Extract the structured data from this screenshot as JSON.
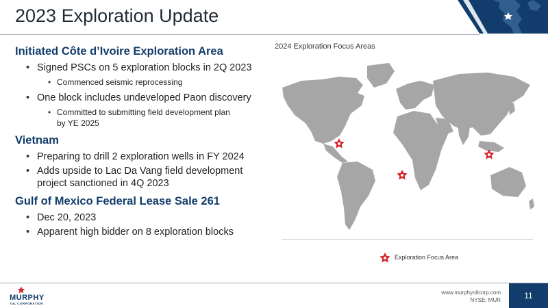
{
  "title": "2023 Exploration Update",
  "sections": [
    {
      "heading": "Initiated Côte d’Ivoire Exploration Area",
      "bullets": [
        {
          "text": "Signed PSCs on 5 exploration blocks in 2Q 2023",
          "sub": [
            "Commenced seismic reprocessing"
          ]
        },
        {
          "text": "One block includes undeveloped Paon discovery",
          "sub": [
            "Committed to submitting field development plan by YE 2025"
          ]
        }
      ]
    },
    {
      "heading": "Vietnam",
      "bullets": [
        {
          "text": "Preparing to drill 2 exploration wells in FY 2024",
          "sub": []
        },
        {
          "text": "Adds upside to Lac Da Vang field development project sanctioned in 4Q 2023",
          "sub": []
        }
      ]
    },
    {
      "heading": "Gulf of Mexico Federal Lease Sale 261",
      "bullets": [
        {
          "text": "Dec 20, 2023",
          "sub": []
        },
        {
          "text": "Apparent high bidder on 8 exploration blocks",
          "sub": []
        }
      ]
    }
  ],
  "map": {
    "label": "2024 Exploration Focus Areas",
    "legend": "Exploration Focus Area",
    "marker_color": "#d9252b",
    "land_color": "#a6a6a6",
    "markers": [
      "Gulf of Mexico",
      "Côte d’Ivoire",
      "Vietnam"
    ]
  },
  "footer": {
    "logo_name": "MURPHY",
    "logo_sub": "OIL CORPORATION",
    "url": "www.murphyoilcorp.com",
    "ticker": "NYSE: MUR",
    "page": "11"
  },
  "colors": {
    "brand_navy": "#123c6b",
    "accent_red": "#d9252b"
  }
}
